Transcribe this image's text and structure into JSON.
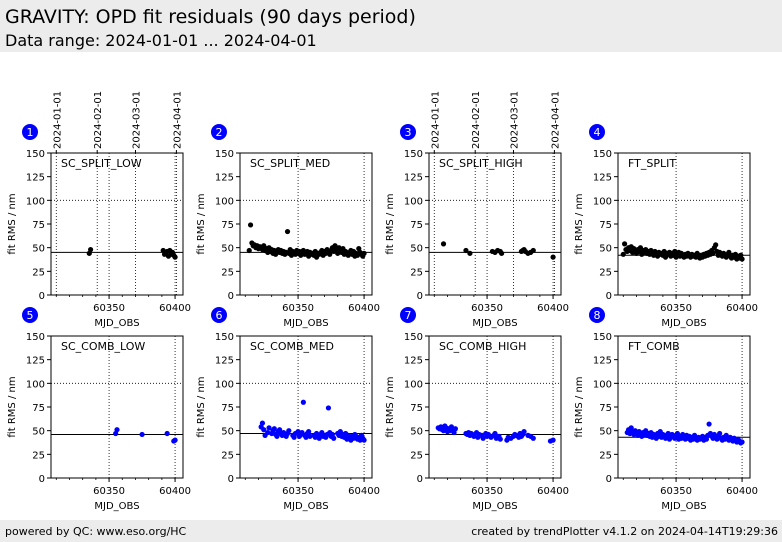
{
  "header": {
    "title": "GRAVITY: OPD fit residuals (90 days period)",
    "subtitle": "Data range: 2024-01-01 ... 2024-04-01"
  },
  "footer": {
    "left": "powered by QC: www.eso.org/HC",
    "right": "created by trendPlotter v4.1.2 on 2024-04-14T19:29:36"
  },
  "colors": {
    "split_points": "#000000",
    "comb_points": "#0000ff",
    "badge": "#0000ff",
    "badge_text": "#ffffff"
  },
  "chart_data": [
    {
      "number": "1",
      "type": "scatter",
      "title": "SC_SPLIT_LOW",
      "xlabel": "MJD_OBS",
      "ylabel": "fit RMS / nm",
      "xlim": [
        60306,
        60406
      ],
      "ylim": [
        0,
        150
      ],
      "yticks": [
        0,
        25,
        50,
        75,
        100,
        125,
        150
      ],
      "xticks": [
        60350,
        60400
      ],
      "hline": 45,
      "color": "black",
      "date_ticks": [
        {
          "label": "2024-01-01",
          "mjd": 60310
        },
        {
          "label": "2024-02-01",
          "mjd": 60341
        },
        {
          "label": "2024-03-01",
          "mjd": 60370
        },
        {
          "label": "2024-04-01",
          "mjd": 60401
        }
      ],
      "x": [
        60335,
        60336,
        60391,
        60392,
        60393,
        60394,
        60395,
        60396,
        60397,
        60398,
        60399,
        60400
      ],
      "y": [
        44,
        48,
        47,
        43,
        45,
        46,
        41,
        47,
        43,
        45,
        42,
        40
      ]
    },
    {
      "number": "2",
      "type": "scatter",
      "title": "SC_SPLIT_MED",
      "xlabel": "MJD_OBS",
      "ylabel": "fit RMS / nm",
      "xlim": [
        60306,
        60406
      ],
      "ylim": [
        0,
        150
      ],
      "yticks": [
        0,
        25,
        50,
        75,
        100,
        125,
        150
      ],
      "xticks": [
        60350,
        60400
      ],
      "hline": 45,
      "color": "black",
      "date_ticks": [],
      "x": [
        60313,
        60314,
        60315,
        60316,
        60317,
        60318,
        60319,
        60320,
        60321,
        60322,
        60323,
        60324,
        60325,
        60326,
        60327,
        60328,
        60329,
        60330,
        60331,
        60332,
        60333,
        60334,
        60335,
        60336,
        60337,
        60338,
        60339,
        60340,
        60341,
        60342,
        60343,
        60344,
        60345,
        60346,
        60347,
        60348,
        60349,
        60350,
        60351,
        60352,
        60353,
        60354,
        60355,
        60356,
        60357,
        60358,
        60359,
        60360,
        60361,
        60362,
        60363,
        60364,
        60365,
        60366,
        60367,
        60368,
        60369,
        60370,
        60371,
        60372,
        60373,
        60374,
        60375,
        60376,
        60377,
        60378,
        60379,
        60380,
        60381,
        60382,
        60383,
        60384,
        60385,
        60386,
        60387,
        60388,
        60389,
        60390,
        60391,
        60392,
        60393,
        60394,
        60395,
        60396,
        60397,
        60398,
        60399,
        60400
      ],
      "y": [
        47,
        74,
        55,
        52,
        53,
        50,
        52,
        49,
        51,
        50,
        48,
        52,
        47,
        49,
        45,
        50,
        46,
        48,
        44,
        47,
        43,
        46,
        48,
        45,
        47,
        44,
        46,
        43,
        45,
        67,
        44,
        48,
        42,
        46,
        45,
        43,
        47,
        44,
        46,
        42,
        45,
        47,
        43,
        44,
        46,
        41,
        45,
        43,
        44,
        42,
        46,
        40,
        44,
        43,
        45,
        47,
        42,
        46,
        44,
        48,
        45,
        43,
        47,
        50,
        46,
        52,
        48,
        44,
        50,
        47,
        45,
        49,
        43,
        46,
        44,
        42,
        45,
        47,
        43,
        46,
        41,
        44,
        42,
        49,
        45,
        43,
        41,
        44
      ]
    },
    {
      "number": "3",
      "type": "scatter",
      "title": "SC_SPLIT_HIGH",
      "xlabel": "MJD_OBS",
      "ylabel": "fit RMS / nm",
      "xlim": [
        60306,
        60406
      ],
      "ylim": [
        0,
        150
      ],
      "yticks": [
        0,
        25,
        50,
        75,
        100,
        125,
        150
      ],
      "xticks": [
        60350,
        60400
      ],
      "hline": 45,
      "color": "black",
      "date_ticks": [
        {
          "label": "2024-01-01",
          "mjd": 60310
        },
        {
          "label": "2024-02-01",
          "mjd": 60341
        },
        {
          "label": "2024-03-01",
          "mjd": 60370
        },
        {
          "label": "2024-04-01",
          "mjd": 60401
        }
      ],
      "x": [
        60317,
        60334,
        60337,
        60354,
        60356,
        60358,
        60360,
        60361,
        60376,
        60377,
        60378,
        60379,
        60381,
        60383,
        60385,
        60400
      ],
      "y": [
        54,
        47,
        44,
        46,
        45,
        47,
        46,
        44,
        46,
        47,
        48,
        46,
        44,
        45,
        47,
        40
      ]
    },
    {
      "number": "4",
      "type": "scatter",
      "title": "FT_SPLIT",
      "xlabel": "MJD_OBS",
      "ylabel": "fit RMS / nm",
      "xlim": [
        60306,
        60406
      ],
      "ylim": [
        0,
        150
      ],
      "yticks": [
        0,
        25,
        50,
        75,
        100,
        125,
        150
      ],
      "xticks": [
        60350,
        60400
      ],
      "hline": 42,
      "color": "black",
      "date_ticks": [],
      "x": [
        60310,
        60311,
        60312,
        60313,
        60314,
        60315,
        60316,
        60317,
        60318,
        60319,
        60320,
        60321,
        60322,
        60323,
        60324,
        60325,
        60326,
        60327,
        60328,
        60329,
        60330,
        60331,
        60332,
        60333,
        60334,
        60335,
        60336,
        60337,
        60338,
        60339,
        60340,
        60341,
        60342,
        60343,
        60344,
        60345,
        60346,
        60347,
        60348,
        60349,
        60350,
        60351,
        60352,
        60353,
        60354,
        60355,
        60356,
        60357,
        60358,
        60359,
        60360,
        60361,
        60362,
        60363,
        60364,
        60365,
        60366,
        60367,
        60368,
        60369,
        60370,
        60371,
        60372,
        60373,
        60374,
        60375,
        60376,
        60377,
        60378,
        60379,
        60380,
        60381,
        60382,
        60383,
        60384,
        60385,
        60386,
        60387,
        60388,
        60389,
        60390,
        60391,
        60392,
        60393,
        60394,
        60395,
        60396,
        60397,
        60398,
        60399,
        60400
      ],
      "y": [
        43,
        54,
        48,
        46,
        50,
        47,
        51,
        45,
        49,
        47,
        44,
        48,
        46,
        50,
        43,
        47,
        45,
        48,
        44,
        46,
        43,
        47,
        45,
        42,
        46,
        44,
        41,
        45,
        43,
        44,
        42,
        46,
        40,
        44,
        43,
        45,
        41,
        44,
        42,
        46,
        40,
        43,
        45,
        41,
        44,
        42,
        40,
        43,
        41,
        44,
        42,
        40,
        43,
        41,
        42,
        40,
        44,
        41,
        39,
        42,
        40,
        43,
        41,
        44,
        42,
        45,
        43,
        47,
        44,
        50,
        53,
        46,
        42,
        45,
        43,
        41,
        44,
        42,
        40,
        43,
        45,
        41,
        39,
        42,
        40,
        43,
        38,
        41,
        39,
        42,
        38
      ]
    },
    {
      "number": "5",
      "type": "scatter",
      "title": "SC_COMB_LOW",
      "xlabel": "MJD_OBS",
      "ylabel": "fit RMS / nm",
      "xlim": [
        60306,
        60406
      ],
      "ylim": [
        0,
        150
      ],
      "yticks": [
        0,
        25,
        50,
        75,
        100,
        125,
        150
      ],
      "xticks": [
        60350,
        60400
      ],
      "hline": 46,
      "color": "blue",
      "date_ticks": [],
      "x": [
        60355,
        60356,
        60375,
        60394,
        60399,
        60400
      ],
      "y": [
        47,
        51,
        46,
        47,
        39,
        40
      ]
    },
    {
      "number": "6",
      "type": "scatter",
      "title": "SC_COMB_MED",
      "xlabel": "MJD_OBS",
      "ylabel": "fit RMS / nm",
      "xlim": [
        60306,
        60406
      ],
      "ylim": [
        0,
        150
      ],
      "yticks": [
        0,
        25,
        50,
        75,
        100,
        125,
        150
      ],
      "xticks": [
        60350,
        60400
      ],
      "hline": 47,
      "color": "blue",
      "date_ticks": [],
      "x": [
        60322,
        60323,
        60324,
        60325,
        60327,
        60328,
        60330,
        60331,
        60332,
        60333,
        60334,
        60335,
        60336,
        60337,
        60338,
        60339,
        60340,
        60341,
        60342,
        60343,
        60346,
        60347,
        60348,
        60350,
        60351,
        60352,
        60353,
        60354,
        60355,
        60356,
        60357,
        60358,
        60359,
        60362,
        60363,
        60364,
        60365,
        60366,
        60367,
        60368,
        60369,
        60370,
        60371,
        60372,
        60373,
        60374,
        60375,
        60376,
        60377,
        60380,
        60381,
        60382,
        60383,
        60384,
        60385,
        60386,
        60387,
        60388,
        60389,
        60390,
        60391,
        60392,
        60393,
        60394,
        60395,
        60396,
        60397,
        60398,
        60399,
        60400
      ],
      "y": [
        54,
        58,
        51,
        45,
        48,
        53,
        47,
        50,
        52,
        46,
        44,
        49,
        51,
        47,
        45,
        48,
        46,
        44,
        47,
        50,
        45,
        43,
        47,
        49,
        44,
        46,
        48,
        80,
        45,
        43,
        47,
        49,
        44,
        45,
        43,
        47,
        44,
        42,
        46,
        48,
        44,
        45,
        43,
        46,
        74,
        48,
        44,
        46,
        42,
        47,
        45,
        49,
        44,
        46,
        43,
        47,
        41,
        45,
        43,
        40,
        44,
        42,
        46,
        44,
        41,
        43,
        40,
        45,
        42,
        40
      ]
    },
    {
      "number": "7",
      "type": "scatter",
      "title": "SC_COMB_HIGH",
      "xlabel": "MJD_OBS",
      "ylabel": "fit RMS / nm",
      "xlim": [
        60306,
        60406
      ],
      "ylim": [
        0,
        150
      ],
      "yticks": [
        0,
        25,
        50,
        75,
        100,
        125,
        150
      ],
      "xticks": [
        60350,
        60400
      ],
      "hline": 46,
      "color": "blue",
      "date_ticks": [],
      "x": [
        60313,
        60314,
        60315,
        60316,
        60317,
        60318,
        60319,
        60320,
        60321,
        60322,
        60323,
        60324,
        60325,
        60326,
        60334,
        60335,
        60336,
        60337,
        60338,
        60339,
        60340,
        60342,
        60343,
        60344,
        60346,
        60347,
        60349,
        60350,
        60351,
        60353,
        60355,
        60356,
        60357,
        60359,
        60360,
        60365,
        60366,
        60368,
        60370,
        60371,
        60372,
        60374,
        60375,
        60376,
        60377,
        60378,
        60381,
        60383,
        60385,
        60398,
        60400
      ],
      "y": [
        53,
        52,
        54,
        51,
        50,
        55,
        53,
        49,
        52,
        50,
        54,
        51,
        48,
        52,
        47,
        46,
        48,
        45,
        47,
        46,
        44,
        48,
        43,
        46,
        45,
        42,
        47,
        44,
        46,
        43,
        45,
        47,
        42,
        44,
        41,
        40,
        43,
        42,
        44,
        46,
        45,
        43,
        47,
        44,
        46,
        49,
        45,
        44,
        42,
        39,
        40
      ]
    },
    {
      "number": "8",
      "type": "scatter",
      "title": "FT_COMB",
      "xlabel": "MJD_OBS",
      "ylabel": "fit RMS / nm",
      "xlim": [
        60306,
        60406
      ],
      "ylim": [
        0,
        150
      ],
      "yticks": [
        0,
        25,
        50,
        75,
        100,
        125,
        150
      ],
      "xticks": [
        60350,
        60400
      ],
      "hline": 43,
      "color": "blue",
      "date_ticks": [],
      "x": [
        60313,
        60314,
        60315,
        60316,
        60317,
        60318,
        60319,
        60320,
        60321,
        60322,
        60323,
        60324,
        60325,
        60326,
        60327,
        60328,
        60329,
        60330,
        60331,
        60332,
        60333,
        60334,
        60335,
        60336,
        60337,
        60338,
        60339,
        60340,
        60341,
        60342,
        60343,
        60344,
        60345,
        60346,
        60347,
        60348,
        60349,
        60350,
        60351,
        60352,
        60353,
        60354,
        60355,
        60356,
        60357,
        60358,
        60359,
        60360,
        60361,
        60362,
        60363,
        60364,
        60365,
        60366,
        60367,
        60368,
        60369,
        60370,
        60371,
        60372,
        60373,
        60374,
        60375,
        60376,
        60377,
        60378,
        60379,
        60380,
        60381,
        60382,
        60383,
        60384,
        60385,
        60386,
        60387,
        60388,
        60389,
        60390,
        60391,
        60392,
        60393,
        60394,
        60395,
        60396,
        60397,
        60398,
        60399,
        60400
      ],
      "y": [
        48,
        51,
        47,
        53,
        49,
        46,
        50,
        48,
        45,
        49,
        47,
        44,
        48,
        46,
        50,
        45,
        47,
        44,
        48,
        43,
        46,
        45,
        42,
        47,
        44,
        49,
        43,
        46,
        45,
        42,
        44,
        47,
        41,
        43,
        46,
        44,
        42,
        45,
        47,
        41,
        44,
        42,
        46,
        43,
        41,
        45,
        42,
        44,
        40,
        43,
        41,
        45,
        42,
        40,
        43,
        41,
        42,
        44,
        40,
        43,
        41,
        45,
        57,
        47,
        44,
        42,
        46,
        43,
        41,
        44,
        47,
        42,
        40,
        43,
        41,
        45,
        42,
        40,
        43,
        41,
        39,
        42,
        40,
        38,
        41,
        39,
        37,
        38
      ]
    }
  ]
}
